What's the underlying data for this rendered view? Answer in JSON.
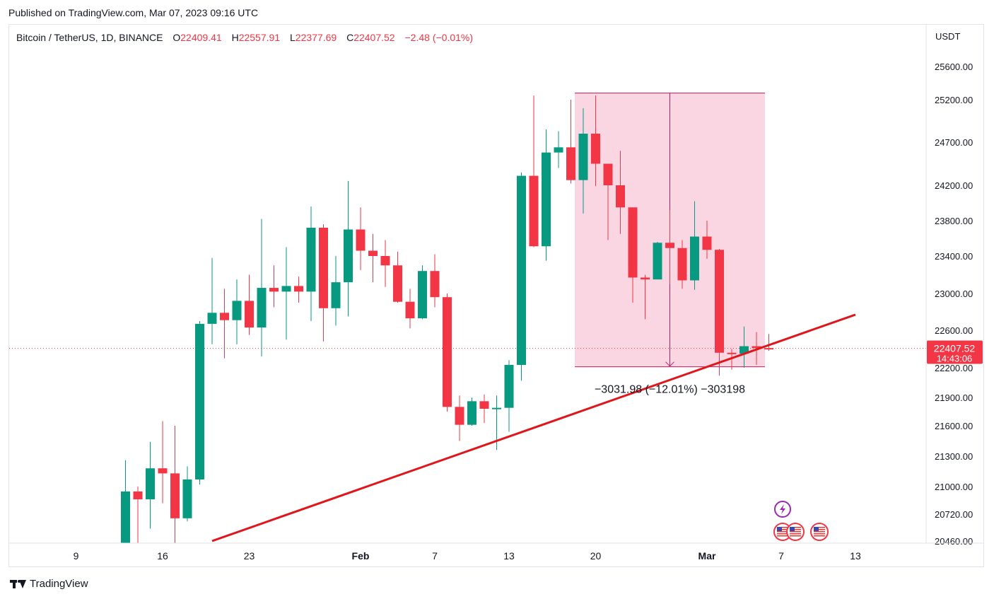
{
  "header": {
    "published": "Published on TradingView.com, Mar 07, 2023 09:16 UTC"
  },
  "legend": {
    "symbol": "Bitcoin / TetherUS, 1D, BINANCE",
    "o_label": "O",
    "o_value": "22409.41",
    "h_label": "H",
    "h_value": "22557.91",
    "l_label": "L",
    "l_value": "22377.69",
    "c_label": "C",
    "c_value": "22407.52",
    "change": "−2.48 (−0.01%)"
  },
  "footer": {
    "brand": "TradingView"
  },
  "colors": {
    "up": "#089981",
    "down": "#f23645",
    "trendline": "#e0161b",
    "range_fill": "#f8c8d9",
    "range_edge": "#c2185b",
    "last_price_bg": "#f23645"
  },
  "chart_data": {
    "type": "candlestick",
    "currency": "USDT",
    "y_ticks": [
      "25600.00",
      "25200.00",
      "24700.00",
      "24200.00",
      "23800.00",
      "23400.00",
      "23000.00",
      "22600.00",
      "22200.00",
      "21900.00",
      "21600.00",
      "21300.00",
      "21000.00",
      "20720.00",
      "20460.00"
    ],
    "y_tick_values": [
      25600,
      25200,
      24700,
      24200,
      23800,
      23400,
      23000,
      22600,
      22200,
      21900,
      21600,
      21300,
      21000,
      20720,
      20460
    ],
    "x_ticks": [
      {
        "label": "9",
        "date": "2023-01-09",
        "bold": false
      },
      {
        "label": "16",
        "date": "2023-01-16",
        "bold": false
      },
      {
        "label": "23",
        "date": "2023-01-23",
        "bold": false
      },
      {
        "label": "Feb",
        "date": "2023-02-01",
        "bold": true
      },
      {
        "label": "7",
        "date": "2023-02-07",
        "bold": false
      },
      {
        "label": "13",
        "date": "2023-02-13",
        "bold": false
      },
      {
        "label": "20",
        "date": "2023-02-20",
        "bold": false
      },
      {
        "label": "Mar",
        "date": "2023-03-01",
        "bold": true
      },
      {
        "label": "7",
        "date": "2023-03-07",
        "bold": false
      },
      {
        "label": "13",
        "date": "2023-03-13",
        "bold": false
      }
    ],
    "candles": [
      {
        "date": "2023-01-13",
        "o": 19930,
        "h": 21260,
        "l": 19880,
        "c": 20950
      },
      {
        "date": "2023-01-14",
        "o": 20950,
        "h": 21000,
        "l": 20350,
        "c": 20870
      },
      {
        "date": "2023-01-15",
        "o": 20870,
        "h": 21440,
        "l": 20580,
        "c": 21180
      },
      {
        "date": "2023-01-16",
        "o": 21180,
        "h": 21650,
        "l": 20830,
        "c": 21130
      },
      {
        "date": "2023-01-17",
        "o": 21130,
        "h": 21600,
        "l": 20430,
        "c": 20680
      },
      {
        "date": "2023-01-18",
        "o": 20680,
        "h": 21200,
        "l": 20650,
        "c": 21070
      },
      {
        "date": "2023-01-19",
        "o": 21070,
        "h": 22700,
        "l": 21020,
        "c": 22670
      },
      {
        "date": "2023-01-20",
        "o": 22670,
        "h": 23380,
        "l": 22450,
        "c": 22790
      },
      {
        "date": "2023-01-21",
        "o": 22790,
        "h": 23050,
        "l": 22300,
        "c": 22710
      },
      {
        "date": "2023-01-22",
        "o": 22710,
        "h": 23150,
        "l": 22450,
        "c": 22920
      },
      {
        "date": "2023-01-23",
        "o": 22920,
        "h": 23200,
        "l": 22550,
        "c": 22630
      },
      {
        "date": "2023-01-24",
        "o": 22630,
        "h": 23820,
        "l": 22320,
        "c": 23060
      },
      {
        "date": "2023-01-25",
        "o": 23060,
        "h": 23300,
        "l": 22850,
        "c": 23020
      },
      {
        "date": "2023-01-26",
        "o": 23020,
        "h": 23500,
        "l": 22500,
        "c": 23080
      },
      {
        "date": "2023-01-27",
        "o": 23080,
        "h": 23180,
        "l": 22900,
        "c": 23020
      },
      {
        "date": "2023-01-28",
        "o": 23020,
        "h": 23960,
        "l": 22700,
        "c": 23720
      },
      {
        "date": "2023-01-29",
        "o": 23720,
        "h": 23760,
        "l": 22480,
        "c": 22840
      },
      {
        "date": "2023-01-30",
        "o": 22840,
        "h": 23400,
        "l": 22650,
        "c": 23120
      },
      {
        "date": "2023-01-31",
        "o": 23120,
        "h": 24250,
        "l": 22750,
        "c": 23700
      },
      {
        "date": "2023-02-01",
        "o": 23700,
        "h": 23950,
        "l": 23250,
        "c": 23460
      },
      {
        "date": "2023-02-02",
        "o": 23460,
        "h": 23650,
        "l": 23120,
        "c": 23400
      },
      {
        "date": "2023-02-03",
        "o": 23400,
        "h": 23580,
        "l": 23070,
        "c": 23300
      },
      {
        "date": "2023-02-04",
        "o": 23300,
        "h": 23450,
        "l": 22900,
        "c": 22910
      },
      {
        "date": "2023-02-05",
        "o": 22910,
        "h": 23050,
        "l": 22620,
        "c": 22730
      },
      {
        "date": "2023-02-06",
        "o": 22730,
        "h": 23300,
        "l": 22720,
        "c": 23240
      },
      {
        "date": "2023-02-07",
        "o": 23240,
        "h": 23420,
        "l": 22850,
        "c": 22960
      },
      {
        "date": "2023-02-08",
        "o": 22960,
        "h": 23000,
        "l": 21750,
        "c": 21800
      },
      {
        "date": "2023-02-09",
        "o": 21800,
        "h": 21920,
        "l": 21450,
        "c": 21610
      },
      {
        "date": "2023-02-10",
        "o": 21610,
        "h": 21900,
        "l": 21600,
        "c": 21860
      },
      {
        "date": "2023-02-11",
        "o": 21860,
        "h": 21930,
        "l": 21630,
        "c": 21780
      },
      {
        "date": "2023-02-12",
        "o": 21780,
        "h": 21920,
        "l": 21360,
        "c": 21790
      },
      {
        "date": "2023-02-13",
        "o": 21790,
        "h": 22280,
        "l": 21540,
        "c": 22230
      },
      {
        "date": "2023-02-14",
        "o": 22230,
        "h": 24350,
        "l": 22070,
        "c": 24310
      },
      {
        "date": "2023-02-15",
        "o": 24310,
        "h": 25250,
        "l": 23500,
        "c": 23510
      },
      {
        "date": "2023-02-16",
        "o": 23510,
        "h": 24850,
        "l": 23350,
        "c": 24580
      },
      {
        "date": "2023-02-17",
        "o": 24580,
        "h": 24830,
        "l": 24400,
        "c": 24640
      },
      {
        "date": "2023-02-18",
        "o": 24640,
        "h": 25200,
        "l": 24220,
        "c": 24260
      },
      {
        "date": "2023-02-19",
        "o": 24260,
        "h": 25100,
        "l": 23880,
        "c": 24800
      },
      {
        "date": "2023-02-20",
        "o": 24800,
        "h": 25250,
        "l": 24190,
        "c": 24450
      },
      {
        "date": "2023-02-21",
        "o": 24450,
        "h": 24450,
        "l": 23580,
        "c": 24200
      },
      {
        "date": "2023-02-22",
        "o": 24200,
        "h": 24600,
        "l": 23650,
        "c": 23950
      },
      {
        "date": "2023-02-23",
        "o": 23950,
        "h": 23950,
        "l": 22900,
        "c": 23170
      },
      {
        "date": "2023-02-24",
        "o": 23170,
        "h": 23200,
        "l": 22720,
        "c": 23150
      },
      {
        "date": "2023-02-25",
        "o": 23150,
        "h": 23560,
        "l": 23150,
        "c": 23550
      },
      {
        "date": "2023-02-26",
        "o": 23550,
        "h": 23920,
        "l": 23100,
        "c": 23490
      },
      {
        "date": "2023-02-27",
        "o": 23490,
        "h": 23580,
        "l": 23050,
        "c": 23140
      },
      {
        "date": "2023-02-28",
        "o": 23140,
        "h": 24020,
        "l": 23040,
        "c": 23620
      },
      {
        "date": "2023-03-01",
        "o": 23620,
        "h": 23800,
        "l": 23370,
        "c": 23470
      },
      {
        "date": "2023-03-02",
        "o": 23470,
        "h": 23480,
        "l": 22120,
        "c": 22360
      },
      {
        "date": "2023-03-03",
        "o": 22360,
        "h": 22400,
        "l": 22180,
        "c": 22350
      },
      {
        "date": "2023-03-04",
        "o": 22350,
        "h": 22640,
        "l": 22200,
        "c": 22430
      },
      {
        "date": "2023-03-05",
        "o": 22430,
        "h": 22580,
        "l": 22230,
        "c": 22410
      },
      {
        "date": "2023-03-06",
        "o": 22410,
        "h": 22560,
        "l": 22380,
        "c": 22407.52
      }
    ],
    "price_range_tool": {
      "start": "2023-02-19",
      "end": "2023-03-05",
      "top": 25280,
      "bottom": 22210,
      "label": "−3031.98 (−12.01%) −303198"
    },
    "trendline": {
      "start_date": "2023-01-20",
      "start_price": 20460,
      "end_date": "2023-03-13",
      "end_price": 22770
    },
    "last_price": {
      "value": "22407.52",
      "countdown": "14:43:06"
    },
    "grid": false
  }
}
